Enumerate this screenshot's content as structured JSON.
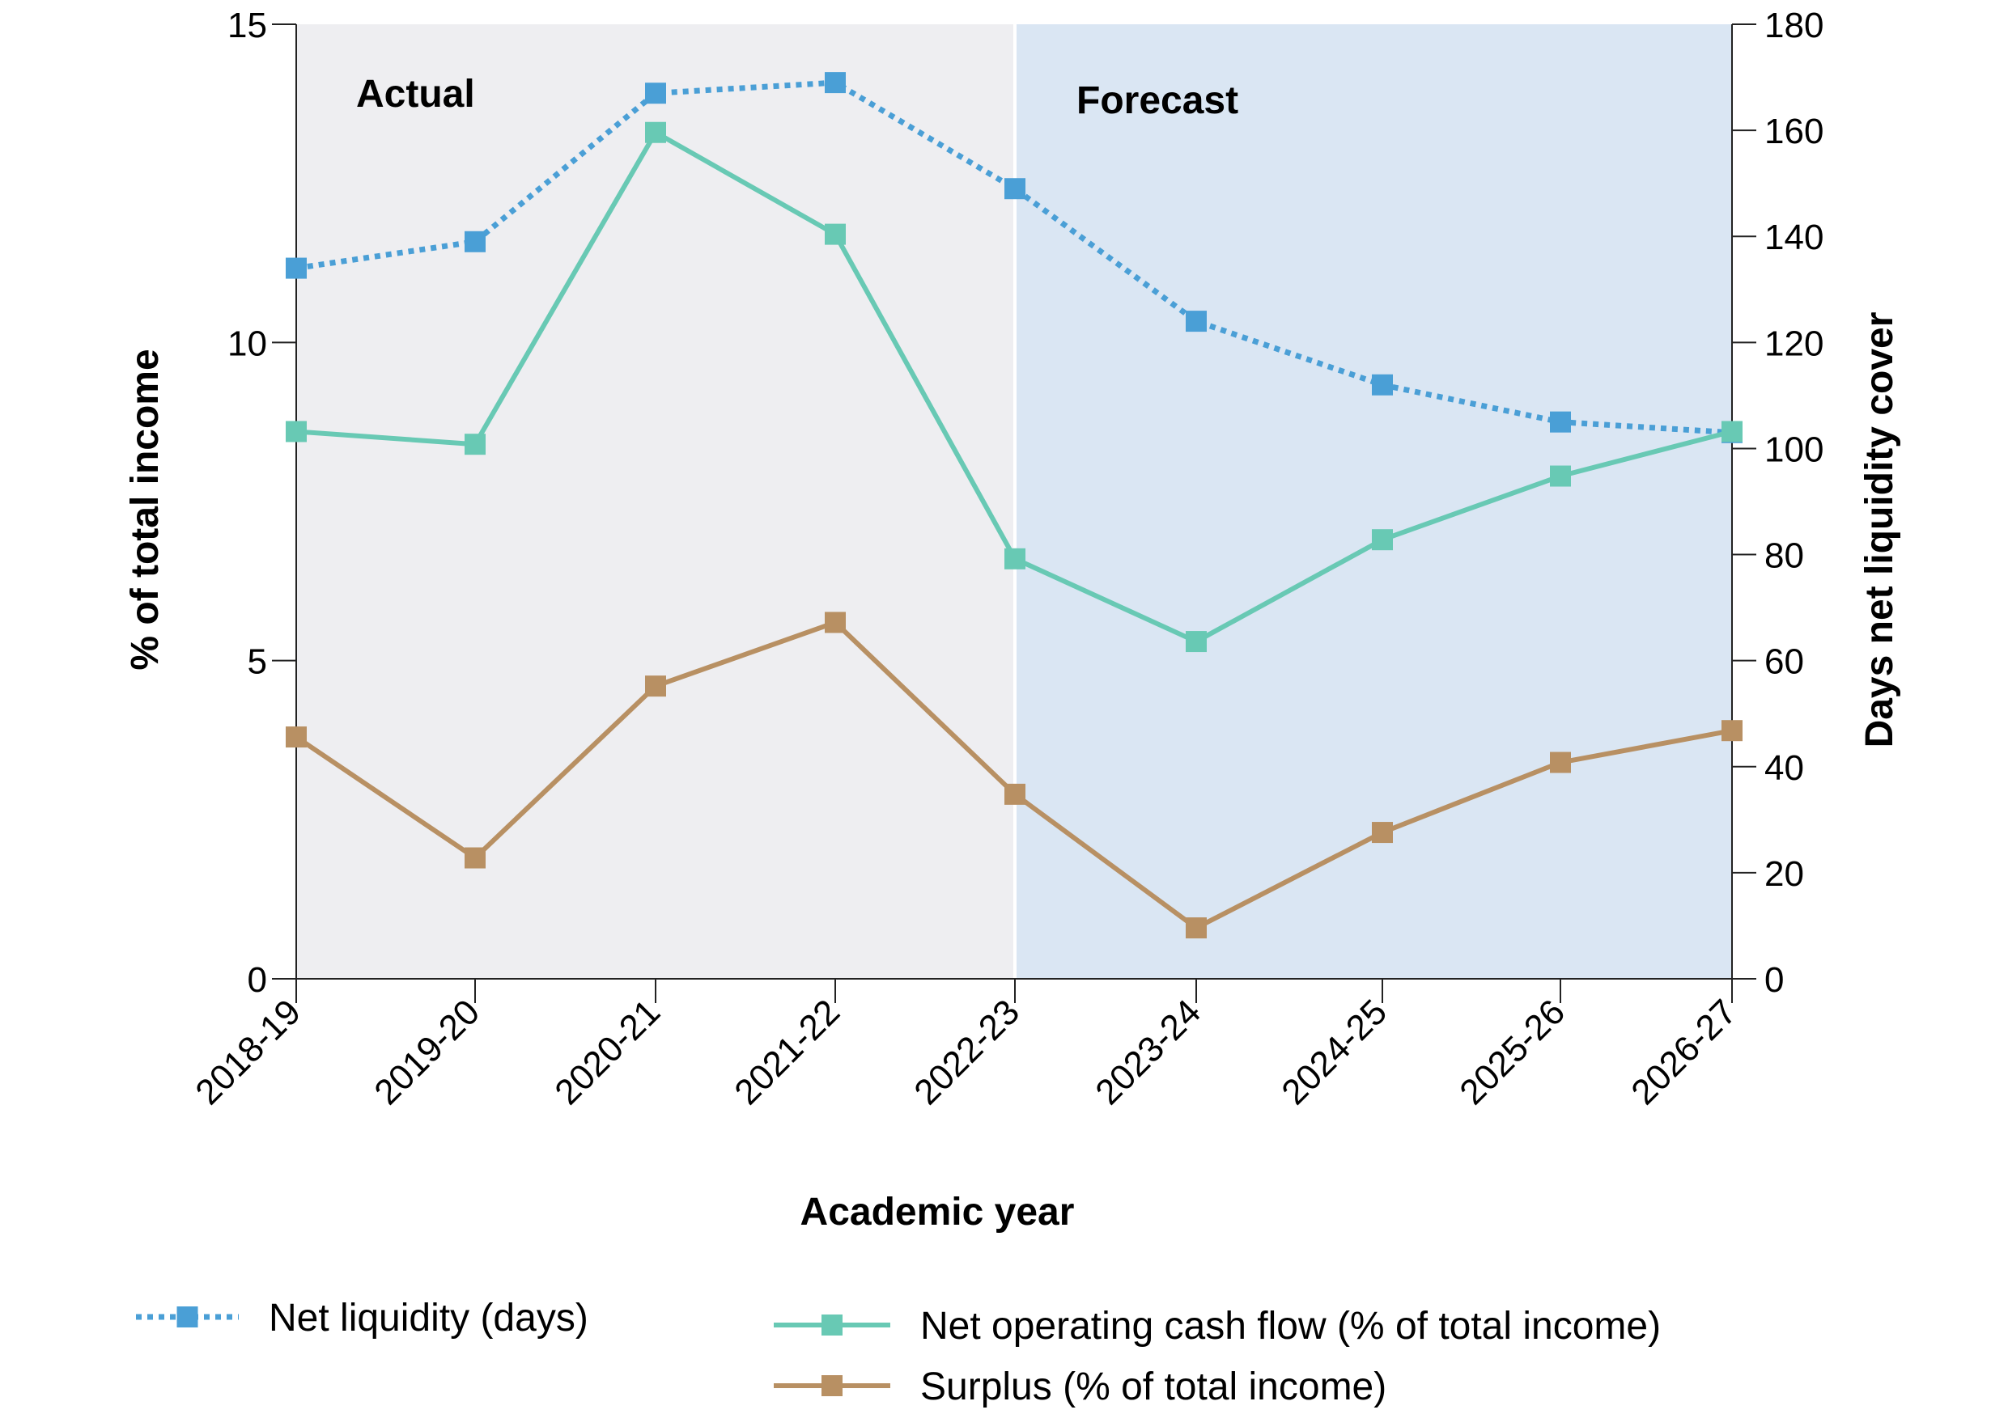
{
  "chart_data": {
    "type": "line",
    "xlabel": "Academic year",
    "ylabel": "% of total income",
    "y2label": "Days net liquidity cover",
    "categories": [
      "2018-19",
      "2019-20",
      "2020-21",
      "2021-22",
      "2022-23",
      "2023-24",
      "2024-25",
      "2025-26",
      "2026-27"
    ],
    "ylim": [
      0,
      15
    ],
    "yticks": [
      0,
      5,
      10,
      15
    ],
    "y2lim": [
      0,
      180
    ],
    "y2ticks": [
      0,
      20,
      40,
      60,
      80,
      100,
      120,
      140,
      160,
      180
    ],
    "regions": [
      {
        "label": "Actual",
        "start": "2018-19",
        "end": "2022-23",
        "color": "#eeeef1"
      },
      {
        "label": "Forecast",
        "start": "2022-23",
        "end": "2026-27",
        "color": "#dae6f3"
      }
    ],
    "series": [
      {
        "name": "Net liquidity (days)",
        "axis": "right",
        "style": "dotted",
        "color": "#4a9fd6",
        "values": [
          134,
          139,
          167,
          169,
          149,
          124,
          112,
          105,
          103
        ]
      },
      {
        "name": "Net operating cash flow (% of total income)",
        "axis": "left",
        "style": "solid",
        "color": "#68c9b4",
        "values": [
          8.6,
          8.4,
          13.3,
          11.7,
          6.6,
          5.3,
          6.9,
          7.9,
          8.6
        ]
      },
      {
        "name": "Surplus (% of total income)",
        "axis": "left",
        "style": "solid",
        "color": "#b89063",
        "values": [
          3.8,
          1.9,
          4.6,
          5.6,
          2.9,
          0.8,
          2.3,
          3.4,
          3.9
        ]
      }
    ]
  }
}
